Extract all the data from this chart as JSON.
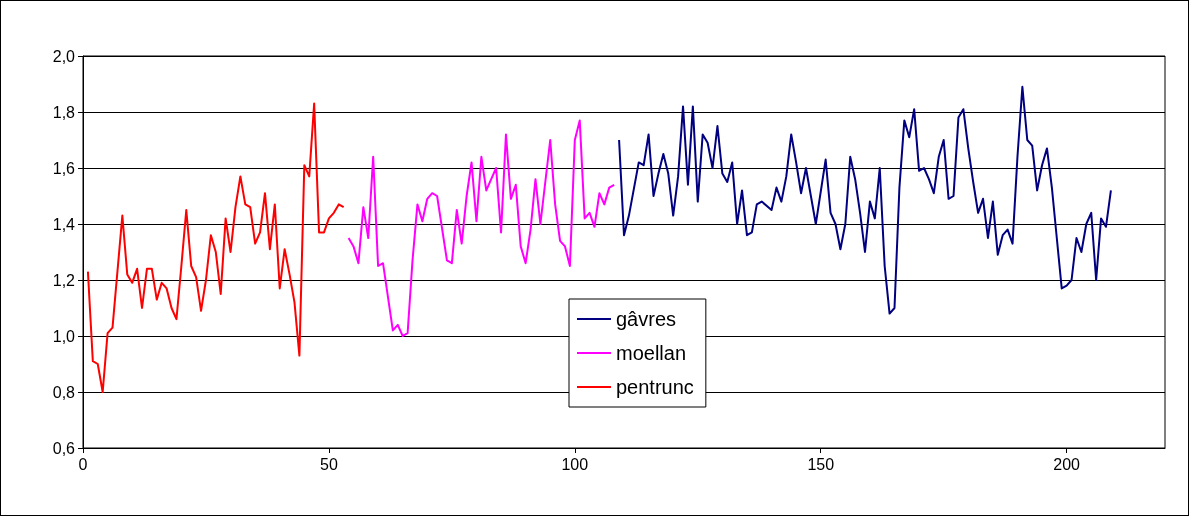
{
  "chart_data": {
    "type": "line",
    "xlim": [
      0,
      220
    ],
    "xticks": [
      0,
      50,
      100,
      150,
      200
    ],
    "ylim": [
      0.6,
      2.0
    ],
    "yticks": [
      {
        "value": 0.6,
        "label": "0,6"
      },
      {
        "value": 0.8,
        "label": "0,8"
      },
      {
        "value": 1.0,
        "label": "1,0"
      },
      {
        "value": 1.2,
        "label": "1,2"
      },
      {
        "value": 1.4,
        "label": "1,4"
      },
      {
        "value": 1.6,
        "label": "1,6"
      },
      {
        "value": 1.8,
        "label": "1,8"
      },
      {
        "value": 2.0,
        "label": "2,0"
      }
    ],
    "grid": "y",
    "legend": "bottom",
    "marker": "none",
    "line_style": "solid",
    "series": [
      {
        "name": "gâvres",
        "color": "#000080",
        "x": [
          109,
          110,
          111,
          113,
          114,
          115,
          116,
          117,
          118,
          119,
          120,
          121,
          122,
          123,
          124,
          125,
          126,
          127,
          128,
          129,
          130,
          131,
          132,
          133,
          134,
          135,
          136,
          137,
          138,
          140,
          141,
          142,
          143,
          144,
          145,
          146,
          147,
          148,
          149,
          151,
          152,
          153,
          154,
          155,
          156,
          157,
          158,
          159,
          160,
          161,
          162,
          163,
          164,
          165,
          166,
          167,
          168,
          169,
          170,
          171,
          172,
          173,
          174,
          175,
          176,
          177,
          178,
          179,
          180,
          181,
          182,
          183,
          184,
          185,
          186,
          187,
          188,
          189,
          190,
          191,
          192,
          193,
          194,
          195,
          196,
          197,
          198,
          199,
          200,
          201,
          202,
          203,
          204,
          205,
          206,
          207,
          208,
          209
        ],
        "values": [
          1.7,
          1.36,
          1.43,
          1.62,
          1.61,
          1.72,
          1.5,
          1.58,
          1.65,
          1.58,
          1.43,
          1.57,
          1.82,
          1.54,
          1.82,
          1.48,
          1.72,
          1.69,
          1.6,
          1.75,
          1.58,
          1.55,
          1.62,
          1.4,
          1.52,
          1.36,
          1.37,
          1.47,
          1.48,
          1.45,
          1.53,
          1.48,
          1.57,
          1.72,
          1.62,
          1.51,
          1.6,
          1.5,
          1.4,
          1.63,
          1.44,
          1.4,
          1.31,
          1.4,
          1.64,
          1.56,
          1.44,
          1.3,
          1.48,
          1.42,
          1.6,
          1.25,
          1.08,
          1.1,
          1.53,
          1.77,
          1.71,
          1.81,
          1.59,
          1.6,
          1.56,
          1.51,
          1.64,
          1.7,
          1.49,
          1.5,
          1.78,
          1.81,
          1.67,
          1.55,
          1.44,
          1.49,
          1.35,
          1.48,
          1.29,
          1.36,
          1.38,
          1.33,
          1.64,
          1.89,
          1.7,
          1.68,
          1.52,
          1.61,
          1.67,
          1.53,
          1.35,
          1.17,
          1.18,
          1.2,
          1.35,
          1.3,
          1.4,
          1.44,
          1.2,
          1.42,
          1.39,
          1.52
        ]
      },
      {
        "name": "moellan",
        "color": "#ff00ff",
        "x": [
          54,
          55,
          56,
          57,
          58,
          59,
          60,
          61,
          63,
          64,
          65,
          66,
          67,
          68,
          69,
          70,
          71,
          72,
          74,
          75,
          76,
          77,
          78,
          79,
          80,
          81,
          82,
          83,
          84,
          85,
          86,
          87,
          88,
          89,
          90,
          91,
          92,
          93,
          95,
          96,
          97,
          98,
          99,
          100,
          101,
          102,
          103,
          104,
          105,
          106,
          107,
          108
        ],
        "values": [
          1.35,
          1.32,
          1.26,
          1.46,
          1.35,
          1.64,
          1.25,
          1.26,
          1.02,
          1.04,
          1.0,
          1.01,
          1.27,
          1.47,
          1.41,
          1.49,
          1.51,
          1.5,
          1.27,
          1.26,
          1.45,
          1.33,
          1.5,
          1.62,
          1.41,
          1.64,
          1.52,
          1.56,
          1.6,
          1.37,
          1.72,
          1.49,
          1.54,
          1.32,
          1.26,
          1.38,
          1.56,
          1.4,
          1.7,
          1.47,
          1.34,
          1.32,
          1.25,
          1.7,
          1.77,
          1.42,
          1.44,
          1.39,
          1.51,
          1.47,
          1.53,
          1.54
        ]
      },
      {
        "name": "pentrunc",
        "color": "#ff0000",
        "x": [
          1,
          2,
          3,
          4,
          5,
          6,
          8,
          9,
          10,
          11,
          12,
          13,
          14,
          15,
          16,
          17,
          18,
          19,
          20,
          21,
          22,
          23,
          24,
          25,
          26,
          27,
          28,
          29,
          30,
          31,
          32,
          33,
          34,
          35,
          36,
          37,
          38,
          39,
          40,
          41,
          42,
          43,
          44,
          45,
          46,
          47,
          48,
          49,
          50,
          51,
          52,
          53
        ],
        "values": [
          1.23,
          0.91,
          0.9,
          0.8,
          1.01,
          1.03,
          1.43,
          1.22,
          1.19,
          1.24,
          1.1,
          1.24,
          1.24,
          1.13,
          1.19,
          1.17,
          1.1,
          1.06,
          1.25,
          1.45,
          1.25,
          1.21,
          1.09,
          1.2,
          1.36,
          1.3,
          1.15,
          1.42,
          1.3,
          1.46,
          1.57,
          1.47,
          1.46,
          1.33,
          1.37,
          1.51,
          1.31,
          1.47,
          1.17,
          1.31,
          1.22,
          1.12,
          0.93,
          1.61,
          1.57,
          1.83,
          1.37,
          1.37,
          1.42,
          1.44,
          1.47,
          1.46
        ]
      }
    ]
  }
}
